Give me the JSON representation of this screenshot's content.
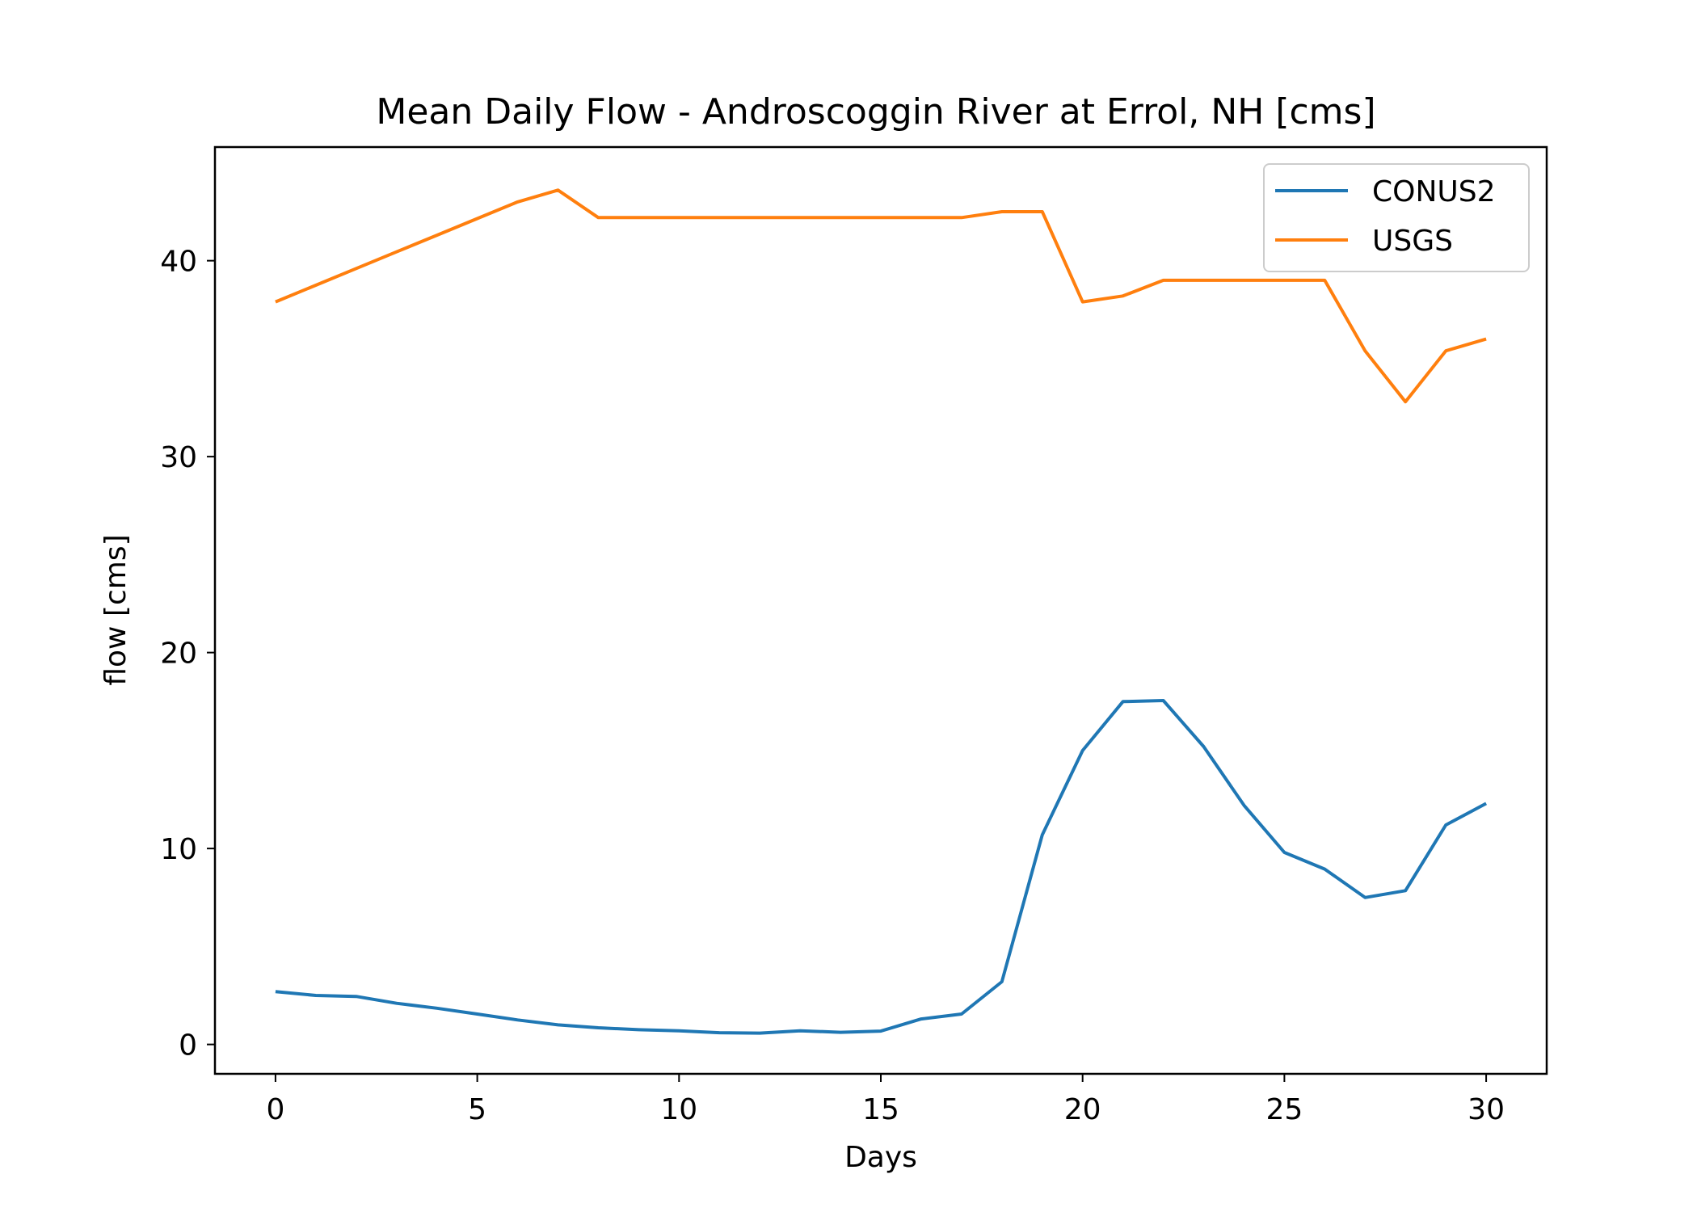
{
  "chart_data": {
    "type": "line",
    "title": "Mean Daily Flow - Androscoggin River at Errol, NH [cms]",
    "xlabel": "Days",
    "ylabel": "flow [cms]",
    "xlim": [
      -1.5,
      31.5
    ],
    "ylim": [
      -1.5,
      45.8
    ],
    "xticks": [
      0,
      5,
      10,
      15,
      20,
      25,
      30
    ],
    "yticks": [
      0,
      10,
      20,
      30,
      40
    ],
    "grid": false,
    "legend_position": "upper right",
    "x": [
      0,
      1,
      2,
      3,
      4,
      5,
      6,
      7,
      8,
      9,
      10,
      11,
      12,
      13,
      14,
      15,
      16,
      17,
      18,
      19,
      20,
      21,
      22,
      23,
      24,
      25,
      26,
      27,
      28,
      29,
      30
    ],
    "series": [
      {
        "name": "CONUS2",
        "color": "#1f77b4",
        "values": [
          2.7,
          2.5,
          2.45,
          2.1,
          1.85,
          1.55,
          1.25,
          1.0,
          0.85,
          0.75,
          0.7,
          0.6,
          0.58,
          0.7,
          0.62,
          0.68,
          1.3,
          1.55,
          3.2,
          10.7,
          15.0,
          17.5,
          17.55,
          15.2,
          12.2,
          9.8,
          8.95,
          7.5,
          7.85,
          11.2,
          12.3
        ]
      },
      {
        "name": "USGS",
        "color": "#ff7f0e",
        "values": [
          37.9,
          38.75,
          39.6,
          40.45,
          41.3,
          42.15,
          43.0,
          43.6,
          42.2,
          42.2,
          42.2,
          42.2,
          42.2,
          42.2,
          42.2,
          42.2,
          42.2,
          42.2,
          42.5,
          42.5,
          37.9,
          38.2,
          39.0,
          39.0,
          39.0,
          39.0,
          39.0,
          35.4,
          32.8,
          35.4,
          36.0
        ]
      }
    ]
  }
}
